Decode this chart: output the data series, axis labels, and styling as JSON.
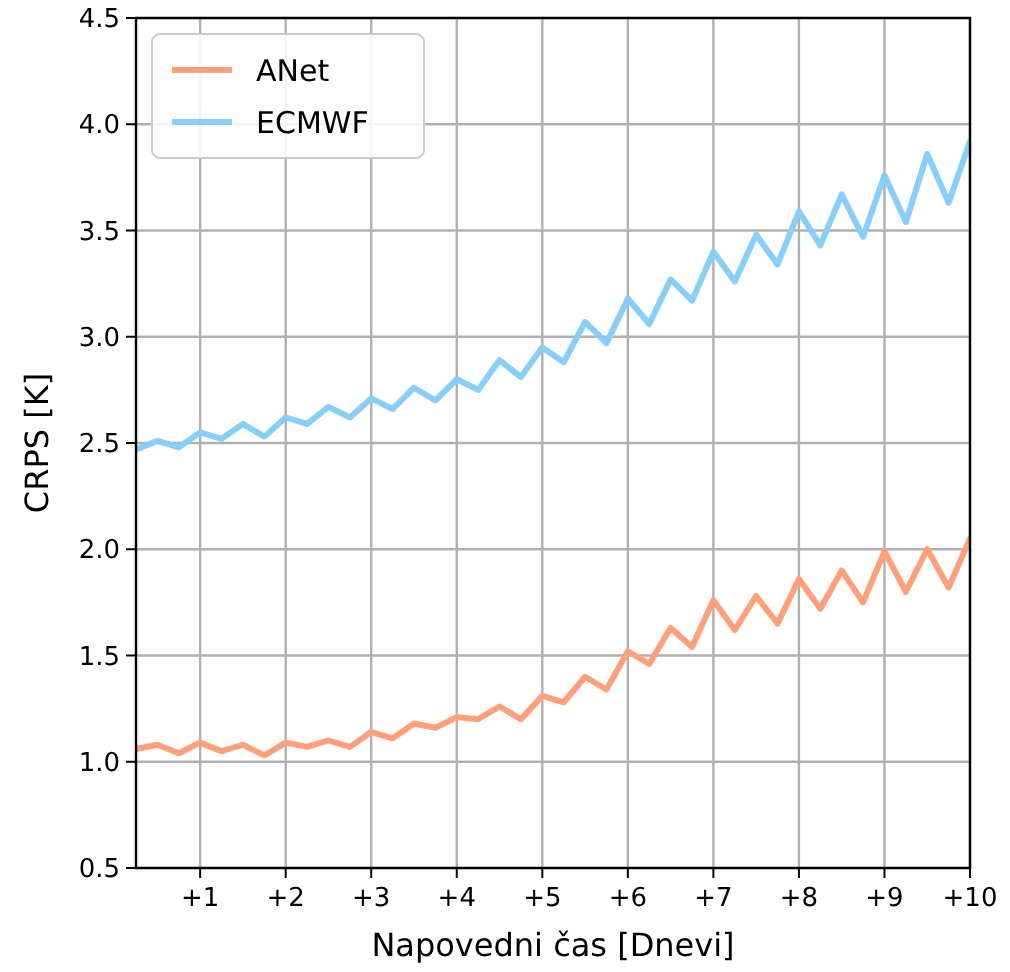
{
  "chart_data": {
    "type": "line",
    "xlabel": "Napovedni čas [Dnevi]",
    "ylabel": "CRPS [K]",
    "x": [
      0.25,
      0.5,
      0.75,
      1,
      1.25,
      1.5,
      1.75,
      2,
      2.25,
      2.5,
      2.75,
      3,
      3.25,
      3.5,
      3.75,
      4,
      4.25,
      4.5,
      4.75,
      5,
      5.25,
      5.5,
      5.75,
      6,
      6.25,
      6.5,
      6.75,
      7,
      7.25,
      7.5,
      7.75,
      8,
      8.25,
      8.5,
      8.75,
      9,
      9.25,
      9.5,
      9.75,
      10
    ],
    "series": [
      {
        "name": "ANet",
        "color": "#ffa07a",
        "values": [
          1.06,
          1.08,
          1.04,
          1.09,
          1.05,
          1.08,
          1.03,
          1.09,
          1.07,
          1.1,
          1.07,
          1.14,
          1.11,
          1.18,
          1.16,
          1.21,
          1.2,
          1.26,
          1.2,
          1.31,
          1.28,
          1.4,
          1.34,
          1.52,
          1.46,
          1.63,
          1.54,
          1.76,
          1.62,
          1.78,
          1.65,
          1.86,
          1.72,
          1.9,
          1.75,
          1.99,
          1.8,
          2.0,
          1.82,
          2.05
        ]
      },
      {
        "name": "ECMWF",
        "color": "#87cefa",
        "values": [
          2.47,
          2.51,
          2.48,
          2.55,
          2.52,
          2.59,
          2.53,
          2.62,
          2.59,
          2.67,
          2.62,
          2.71,
          2.66,
          2.76,
          2.7,
          2.8,
          2.75,
          2.89,
          2.81,
          2.95,
          2.88,
          3.07,
          2.97,
          3.18,
          3.06,
          3.27,
          3.17,
          3.4,
          3.26,
          3.48,
          3.34,
          3.59,
          3.43,
          3.67,
          3.47,
          3.76,
          3.54,
          3.86,
          3.63,
          3.92
        ]
      }
    ],
    "xlim": [
      0.25,
      10
    ],
    "ylim": [
      0.5,
      4.5
    ],
    "xticks": [
      {
        "value": 1,
        "label": "+1"
      },
      {
        "value": 2,
        "label": "+2"
      },
      {
        "value": 3,
        "label": "+3"
      },
      {
        "value": 4,
        "label": "+4"
      },
      {
        "value": 5,
        "label": "+5"
      },
      {
        "value": 6,
        "label": "+6"
      },
      {
        "value": 7,
        "label": "+7"
      },
      {
        "value": 8,
        "label": "+8"
      },
      {
        "value": 9,
        "label": "+9"
      },
      {
        "value": 10,
        "label": "+10"
      }
    ],
    "yticks": [
      {
        "value": 0.5,
        "label": "0.5"
      },
      {
        "value": 1,
        "label": "1.0"
      },
      {
        "value": 1.5,
        "label": "1.5"
      },
      {
        "value": 2,
        "label": "2.0"
      },
      {
        "value": 2.5,
        "label": "2.5"
      },
      {
        "value": 3,
        "label": "3.0"
      },
      {
        "value": 3.5,
        "label": "3.5"
      },
      {
        "value": 4,
        "label": "4.0"
      },
      {
        "value": 4.5,
        "label": "4.5"
      }
    ],
    "grid": true,
    "legend": "top left",
    "line_style": "solid",
    "marker": "none"
  }
}
